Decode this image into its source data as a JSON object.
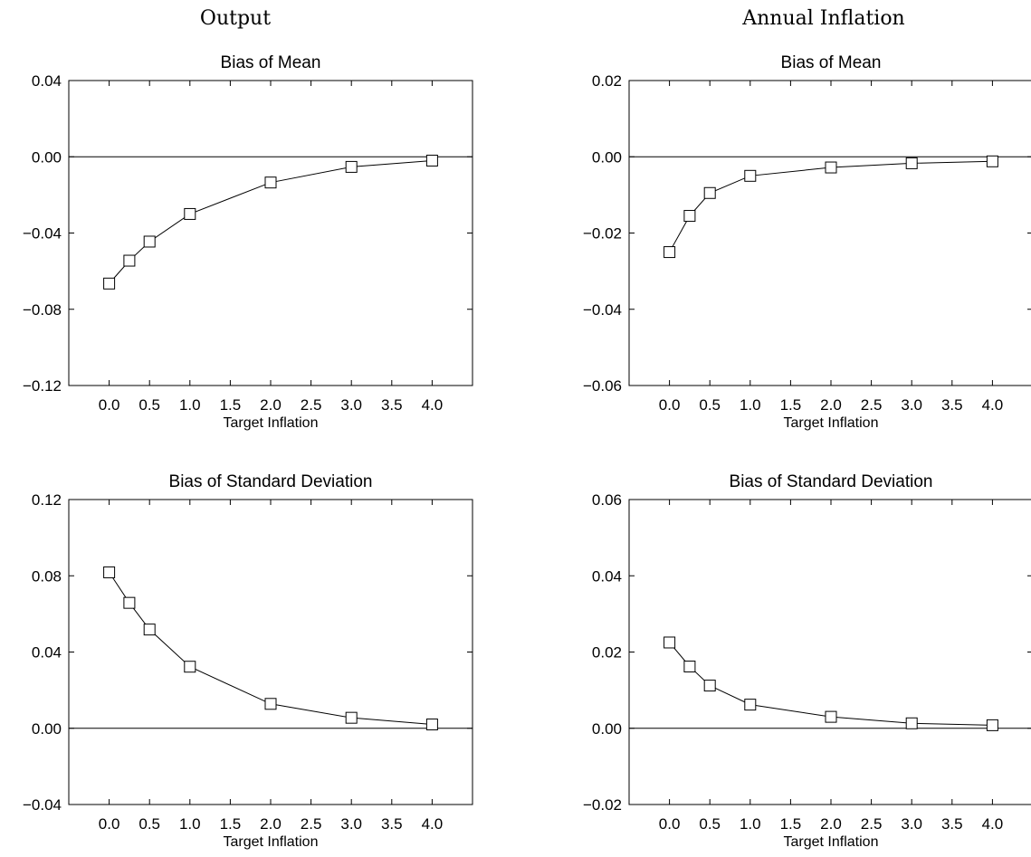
{
  "column_titles": {
    "left": "Output",
    "right": "Annual Inflation"
  },
  "chart_data": [
    {
      "type": "line",
      "title": "Bias of Mean",
      "xlabel": "Target Inflation",
      "ylabel": "",
      "x_ticks": [
        0.0,
        0.5,
        1.0,
        1.5,
        2.0,
        2.5,
        3.0,
        3.5,
        4.0
      ],
      "x_tick_labels": [
        "0.0",
        "0.5",
        "1.0",
        "1.5",
        "2.0",
        "2.5",
        "3.0",
        "3.5",
        "4.0"
      ],
      "xlim": [
        -0.5,
        4.5
      ],
      "y_ticks": [
        0.04,
        0.0,
        -0.04,
        -0.08,
        -0.12
      ],
      "y_tick_labels": [
        "0.04",
        "0.00",
        "−0.04",
        "−0.08",
        "−0.12"
      ],
      "ylim": [
        -0.12,
        0.04
      ],
      "zero_line": true,
      "series": [
        {
          "marker": "square",
          "x": [
            0.0,
            0.25,
            0.5,
            1.0,
            2.0,
            3.0,
            4.0
          ],
          "y": [
            -0.0665,
            -0.0545,
            -0.0445,
            -0.03,
            -0.0135,
            -0.0053,
            -0.002
          ]
        }
      ]
    },
    {
      "type": "line",
      "title": "Bias of Mean",
      "xlabel": "Target Inflation",
      "ylabel": "",
      "x_ticks": [
        0.0,
        0.5,
        1.0,
        1.5,
        2.0,
        2.5,
        3.0,
        3.5,
        4.0
      ],
      "x_tick_labels": [
        "0.0",
        "0.5",
        "1.0",
        "1.5",
        "2.0",
        "2.5",
        "3.0",
        "3.5",
        "4.0"
      ],
      "xlim": [
        -0.5,
        4.5
      ],
      "y_ticks": [
        0.02,
        0.0,
        -0.02,
        -0.04,
        -0.06
      ],
      "y_tick_labels": [
        "0.02",
        "0.00",
        "−0.02",
        "−0.04",
        "−0.06"
      ],
      "ylim": [
        -0.06,
        0.02
      ],
      "zero_line": true,
      "series": [
        {
          "marker": "square",
          "x": [
            0.0,
            0.25,
            0.5,
            1.0,
            2.0,
            3.0,
            4.0
          ],
          "y": [
            -0.025,
            -0.0155,
            -0.0095,
            -0.005,
            -0.0028,
            -0.0017,
            -0.0012
          ]
        }
      ]
    },
    {
      "type": "line",
      "title": "Bias of Standard Deviation",
      "xlabel": "Target Inflation",
      "ylabel": "",
      "x_ticks": [
        0.0,
        0.5,
        1.0,
        1.5,
        2.0,
        2.5,
        3.0,
        3.5,
        4.0
      ],
      "x_tick_labels": [
        "0.0",
        "0.5",
        "1.0",
        "1.5",
        "2.0",
        "2.5",
        "3.0",
        "3.5",
        "4.0"
      ],
      "xlim": [
        -0.5,
        4.5
      ],
      "y_ticks": [
        0.12,
        0.08,
        0.04,
        0.0,
        -0.04
      ],
      "y_tick_labels": [
        "0.12",
        "0.08",
        "0.04",
        "0.00",
        "−0.04"
      ],
      "ylim": [
        -0.04,
        0.12
      ],
      "zero_line": true,
      "series": [
        {
          "marker": "square",
          "x": [
            0.0,
            0.25,
            0.5,
            1.0,
            2.0,
            3.0,
            4.0
          ],
          "y": [
            0.0818,
            0.0658,
            0.0518,
            0.0323,
            0.0128,
            0.0055,
            0.002
          ]
        }
      ]
    },
    {
      "type": "line",
      "title": "Bias of Standard Deviation",
      "xlabel": "Target Inflation",
      "ylabel": "",
      "x_ticks": [
        0.0,
        0.5,
        1.0,
        1.5,
        2.0,
        2.5,
        3.0,
        3.5,
        4.0
      ],
      "x_tick_labels": [
        "0.0",
        "0.5",
        "1.0",
        "1.5",
        "2.0",
        "2.5",
        "3.0",
        "3.5",
        "4.0"
      ],
      "xlim": [
        -0.5,
        4.5
      ],
      "y_ticks": [
        0.06,
        0.04,
        0.02,
        0.0,
        -0.02
      ],
      "y_tick_labels": [
        "0.06",
        "0.04",
        "0.02",
        "0.00",
        "−0.02"
      ],
      "ylim": [
        -0.02,
        0.06
      ],
      "zero_line": true,
      "series": [
        {
          "marker": "square",
          "x": [
            0.0,
            0.25,
            0.5,
            1.0,
            2.0,
            3.0,
            4.0
          ],
          "y": [
            0.0225,
            0.0162,
            0.0112,
            0.0062,
            0.003,
            0.0013,
            0.0008
          ]
        }
      ]
    }
  ]
}
